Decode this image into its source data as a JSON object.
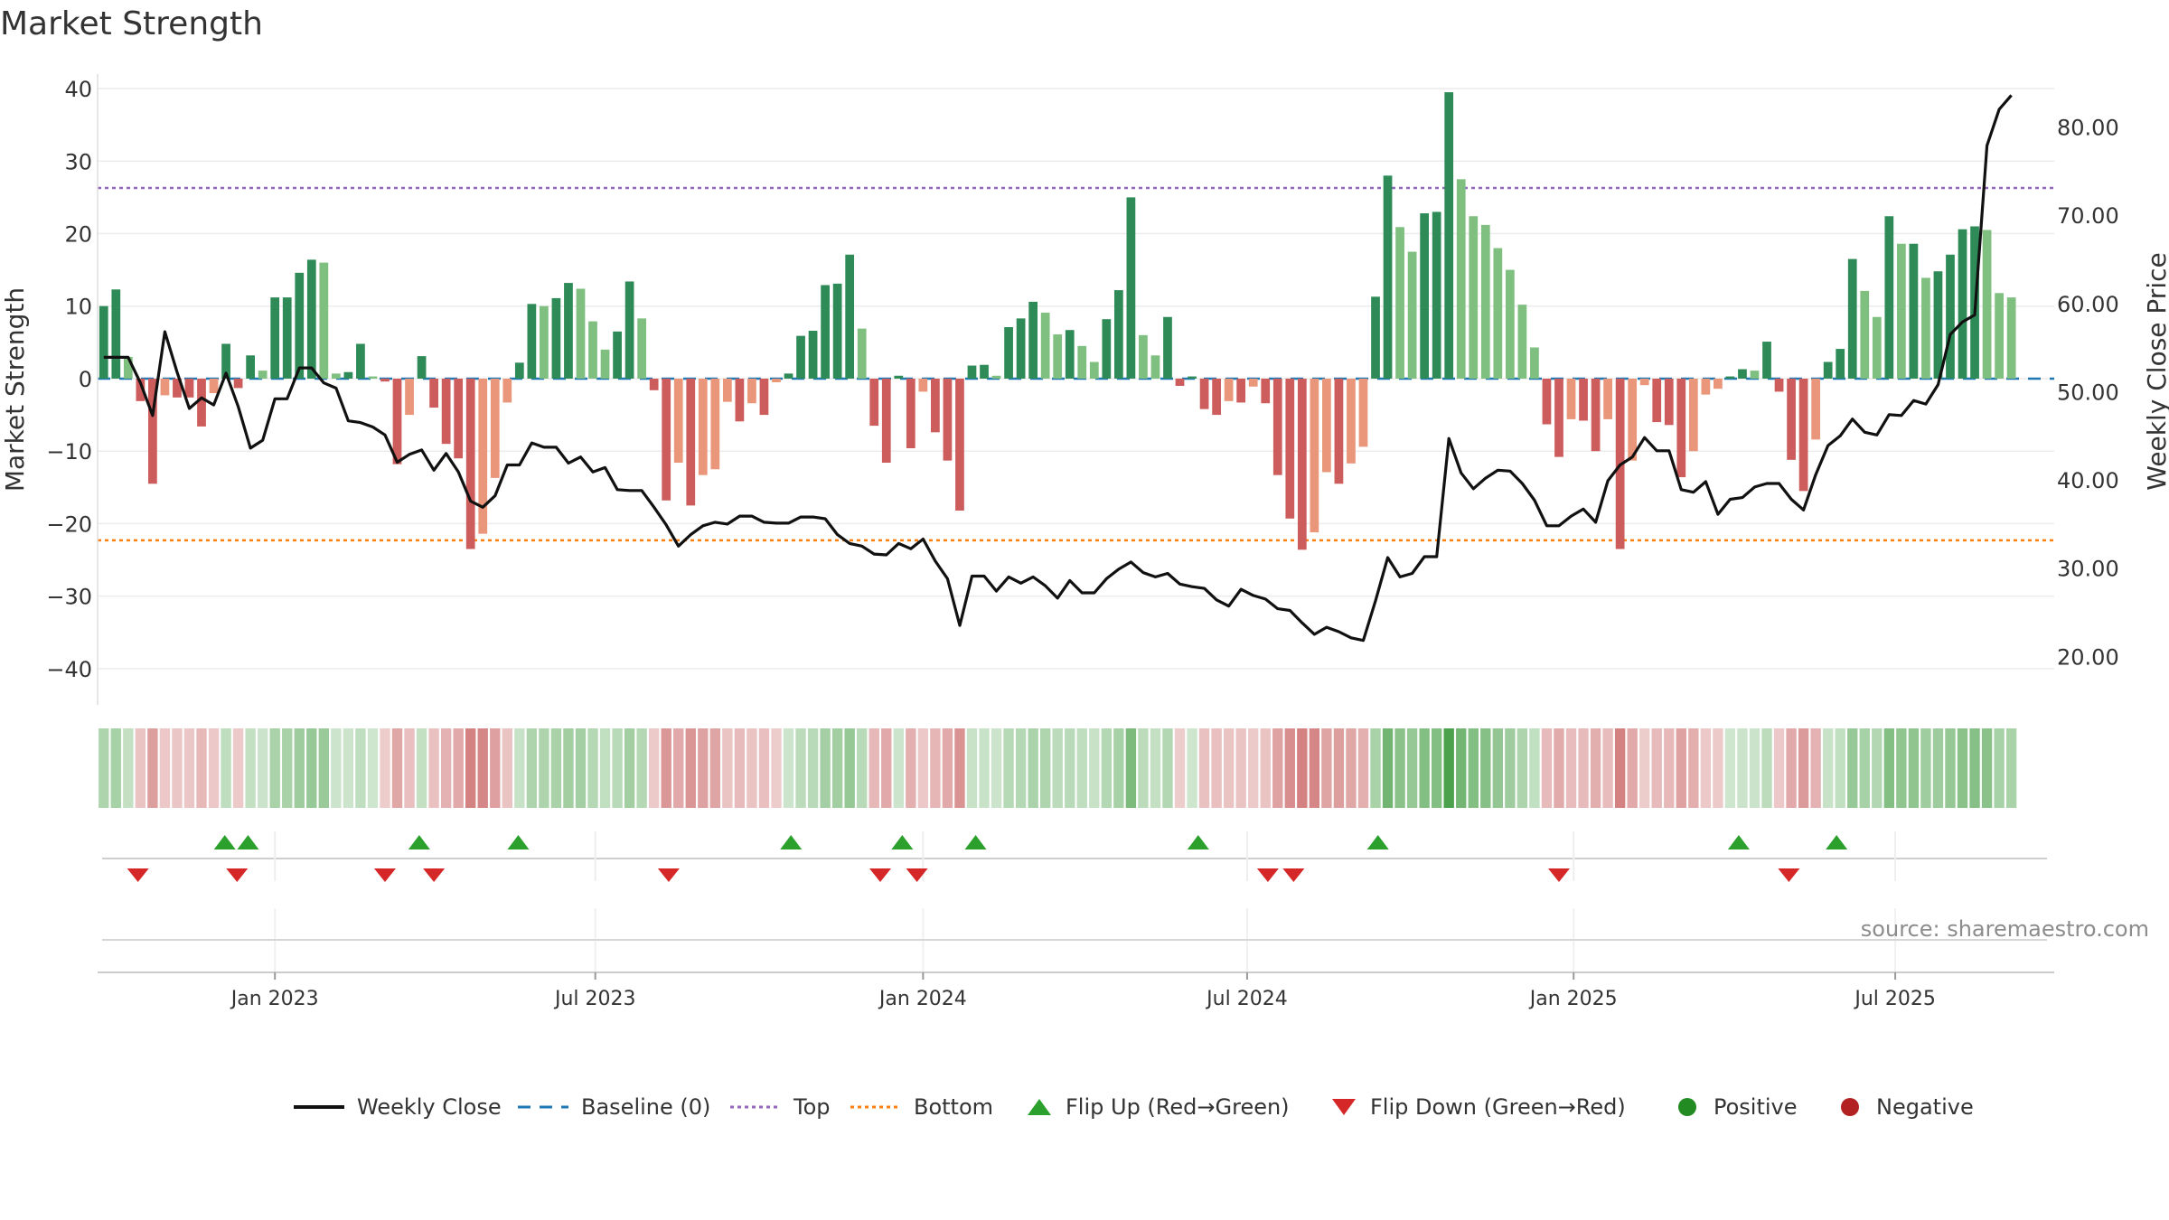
{
  "title": "Market Strength",
  "source": "source: sharemaestro.com",
  "colors": {
    "strong_green": "#2e8b57",
    "light_green": "#7fbf7f",
    "strong_red": "#cd5c5c",
    "light_red": "#e9967a",
    "price_line": "#111111",
    "baseline": "#1f77b4",
    "top_line": "#9467bd",
    "bottom_line": "#ff7f0e",
    "flip_up": "#2ca02c",
    "flip_down": "#d62728",
    "positive": "#228b22",
    "negative": "#b22222"
  },
  "legend": {
    "weekly_close": "Weekly Close",
    "baseline": "Baseline (0)",
    "top": "Top",
    "bottom": "Bottom",
    "flip_up": "Flip Up (Red→Green)",
    "flip_down": "Flip Down (Green→Red)",
    "positive": "Positive",
    "negative": "Negative"
  },
  "chart_data": {
    "type": "bar",
    "title": "Market Strength",
    "ylabel_left": "Market Strength",
    "ylabel_right": "Weekly Close Price",
    "ylim_left": [
      -45,
      42
    ],
    "ylim_right": [
      14.5,
      86
    ],
    "yticks_left": [
      "40",
      "30",
      "20",
      "10",
      "0",
      "−10",
      "−20",
      "−30",
      "−40"
    ],
    "yticks_left_values": [
      40,
      30,
      20,
      10,
      0,
      -10,
      -20,
      -30,
      -40
    ],
    "yticks_right": [
      "80.00",
      "70.00",
      "60.00",
      "50.00",
      "40.00",
      "30.00",
      "20.00"
    ],
    "yticks_right_values": [
      80,
      70,
      60,
      50,
      40,
      30,
      20
    ],
    "x_week_count": 160,
    "x_tick_labels": [
      "Jan 2023",
      "Jul 2023",
      "Jan 2024",
      "Jul 2024",
      "Jan 2025",
      "Jul 2025"
    ],
    "x_tick_weeks": [
      14.5,
      40.7,
      67.5,
      94,
      120.7,
      147
    ],
    "top_threshold": 26.3,
    "bottom_threshold": -22.3,
    "baseline": 0,
    "market_strength": [
      10,
      12.3,
      3,
      -3.1,
      -14.5,
      -2.3,
      -2.6,
      -2.6,
      -6.6,
      -2,
      4.8,
      -1.3,
      3.2,
      1.1,
      11.2,
      11.2,
      14.6,
      16.4,
      16,
      0.7,
      0.9,
      4.8,
      0.3,
      -0.4,
      -11.8,
      -5,
      3.1,
      -4,
      -9,
      -11,
      -23.5,
      -21.4,
      -13.7,
      -3.3,
      2.2,
      10.3,
      10,
      11.1,
      13.2,
      12.4,
      7.9,
      4,
      6.5,
      13.4,
      8.3,
      -1.6,
      -16.8,
      -11.6,
      -17.5,
      -13.3,
      -12.5,
      -3.2,
      -5.9,
      -3.4,
      -5,
      -0.5,
      0.7,
      5.9,
      6.6,
      12.9,
      13.1,
      17.1,
      6.9,
      -6.5,
      -11.6,
      0.4,
      -9.6,
      -1.8,
      -7.4,
      -11.3,
      -18.2,
      1.8,
      1.9,
      0.4,
      7.1,
      8.3,
      10.6,
      9.1,
      6.1,
      6.7,
      4.5,
      2.3,
      8.2,
      12.2,
      25,
      6,
      3.2,
      8.5,
      -1,
      0.3,
      -4.2,
      -5,
      -3.1,
      -3.3,
      -1.1,
      -3.4,
      -13.3,
      -19.3,
      -23.6,
      -21.2,
      -12.9,
      -14.5,
      -11.7,
      -9.4,
      11.3,
      28,
      20.9,
      17.5,
      22.8,
      23,
      39.5,
      27.5,
      22.4,
      21.2,
      18,
      15,
      10.2,
      4.3,
      -6.3,
      -10.8,
      -5.6,
      -5.8,
      -10,
      -5.6,
      -23.5,
      -11.3,
      -0.9,
      -6,
      -6.4,
      -13.6,
      -10,
      -2.2,
      -1.4,
      0.3,
      1.3,
      1.1,
      5.1,
      -1.8,
      -11.2,
      -15.5,
      -8.4,
      2.3,
      4.1,
      16.5,
      12.1,
      8.5,
      22.4,
      18.6,
      18.6,
      13.9,
      14.8,
      17.1,
      20.6,
      21,
      20.5,
      11.8,
      11.2
    ],
    "weekly_close": [
      53.9,
      53.9,
      53.9,
      51,
      47.3,
      56.8,
      52.2,
      48.1,
      49.3,
      48.5,
      52.1,
      48.3,
      43.6,
      44.5,
      49.2,
      49.2,
      52.7,
      52.7,
      51,
      50.4,
      46.7,
      46.5,
      46,
      45.1,
      42,
      42.9,
      43.4,
      41.1,
      43,
      40.9,
      37.6,
      36.9,
      38.2,
      41.7,
      41.7,
      44.2,
      43.7,
      43.7,
      41.9,
      42.6,
      40.9,
      41.4,
      38.9,
      38.8,
      38.8,
      36.9,
      34.9,
      32.5,
      33.8,
      34.8,
      35.2,
      35,
      35.9,
      35.9,
      35.2,
      35.1,
      35.1,
      35.8,
      35.8,
      35.6,
      33.8,
      32.8,
      32.5,
      31.6,
      31.5,
      32.8,
      32.2,
      33.3,
      30.8,
      28.8,
      23.5,
      29.1,
      29.1,
      27.4,
      29,
      28.3,
      29,
      28,
      26.6,
      28.6,
      27.2,
      27.2,
      28.8,
      29.9,
      30.7,
      29.5,
      29,
      29.4,
      28.2,
      27.9,
      27.7,
      26.4,
      25.7,
      27.6,
      26.9,
      26.5,
      25.4,
      25.2,
      23.8,
      22.5,
      23.3,
      22.8,
      22.1,
      21.8,
      26.3,
      31.2,
      29,
      29.4,
      31.3,
      31.3,
      44.7,
      40.8,
      39,
      40.2,
      41.1,
      41,
      39.6,
      37.7,
      34.8,
      34.8,
      35.9,
      36.7,
      35.2,
      39.9,
      41.7,
      42.6,
      44.8,
      43.3,
      43.3,
      38.9,
      38.6,
      39.8,
      36.1,
      37.8,
      38,
      39.2,
      39.6,
      39.6,
      37.8,
      36.6,
      40.6,
      43.9,
      45,
      46.9,
      45.4,
      45.1,
      47.4,
      47.3,
      49,
      48.6,
      50.8,
      56.5,
      57.9,
      58.7,
      77.9,
      82,
      83.6
    ],
    "flip_up_weeks": [
      10.4,
      12.3,
      26.3,
      34.4,
      56.7,
      65.8,
      71.8,
      90,
      104.7,
      134.2,
      142.2
    ],
    "flip_down_weeks": [
      3.3,
      11.4,
      23.5,
      27.5,
      46.7,
      64,
      67,
      95.7,
      97.8,
      119.5,
      138.3
    ],
    "tick_row_weeks": [
      14.5,
      40.7,
      67.5,
      94,
      120.7,
      147
    ]
  }
}
